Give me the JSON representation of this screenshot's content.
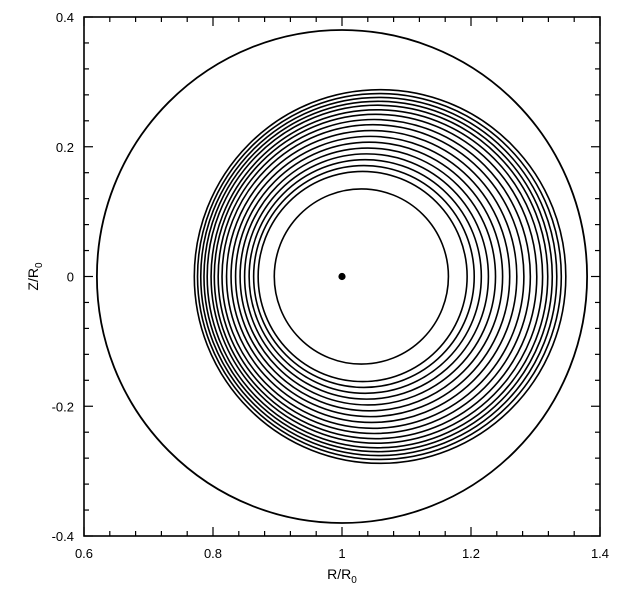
{
  "chart_data": {
    "type": "line",
    "title": "",
    "xlabel": {
      "main": "R/R",
      "sub": "0"
    },
    "ylabel": {
      "main": "Z/R",
      "sub": "0"
    },
    "xlim": [
      0.6,
      1.4
    ],
    "ylim": [
      -0.4,
      0.4
    ],
    "x_ticks": [
      0.6,
      0.8,
      1.0,
      1.2,
      1.4
    ],
    "x_tick_labels": [
      "0.6",
      "0.8",
      "1",
      "1.2",
      "1.4"
    ],
    "y_ticks": [
      -0.4,
      -0.2,
      0,
      0.2,
      0.4
    ],
    "y_tick_labels": [
      "-0.4",
      "-0.2",
      "0",
      "0.2",
      "0.4"
    ],
    "grid": false,
    "magnetic_axis": {
      "r": 1.0,
      "z": 0.0
    },
    "boundary": {
      "center_r": 1.0,
      "center_z": 0.0,
      "radius": 0.38
    },
    "flux_surfaces": [
      {
        "center_r": 1.03,
        "radius": 0.135
      },
      {
        "center_r": 1.032,
        "radius": 0.162
      },
      {
        "center_r": 1.034,
        "radius": 0.171
      },
      {
        "center_r": 1.036,
        "radius": 0.18
      },
      {
        "center_r": 1.038,
        "radius": 0.189
      },
      {
        "center_r": 1.04,
        "radius": 0.198
      },
      {
        "center_r": 1.042,
        "radius": 0.207
      },
      {
        "center_r": 1.044,
        "radius": 0.216
      },
      {
        "center_r": 1.046,
        "radius": 0.225
      },
      {
        "center_r": 1.048,
        "radius": 0.234
      },
      {
        "center_r": 1.05,
        "radius": 0.242
      },
      {
        "center_r": 1.052,
        "radius": 0.25
      },
      {
        "center_r": 1.054,
        "radius": 0.257
      },
      {
        "center_r": 1.055,
        "radius": 0.264
      },
      {
        "center_r": 1.056,
        "radius": 0.27
      },
      {
        "center_r": 1.057,
        "radius": 0.276
      },
      {
        "center_r": 1.058,
        "radius": 0.282
      },
      {
        "center_r": 1.059,
        "radius": 0.288
      }
    ]
  }
}
